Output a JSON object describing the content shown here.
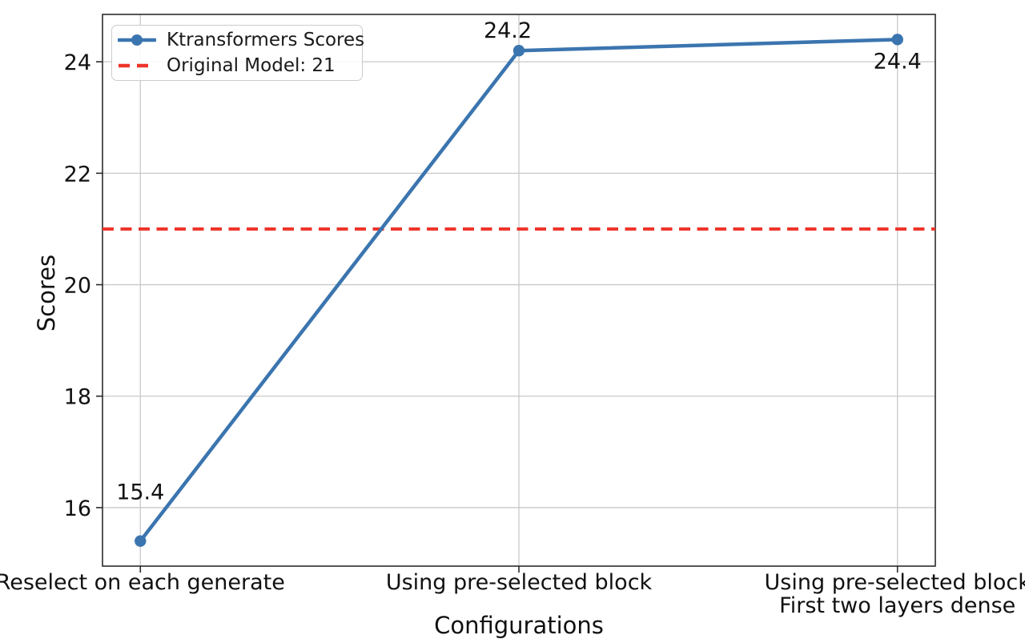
{
  "chart_data": {
    "type": "line",
    "categories": [
      "Reselect on each generate",
      "Using pre-selected block",
      "Using pre-selected block\nFirst two layers dense"
    ],
    "series": [
      {
        "name": "Ktransformers Scores",
        "values": [
          15.4,
          24.2,
          24.4
        ],
        "color": "#3b75af"
      }
    ],
    "reference_line": {
      "label": "Original Model: 21",
      "value": 21,
      "color": "#ee352b",
      "style": "dashed"
    },
    "point_labels": [
      "15.4",
      "24.2",
      "24.4"
    ],
    "title": "",
    "xlabel": "Configurations",
    "ylabel": "Scores",
    "yticks": [
      16,
      18,
      20,
      22,
      24
    ],
    "ylim": [
      14.95,
      24.85
    ],
    "xlim": [
      -0.1,
      2.1
    ],
    "grid": true,
    "legend_position": "upper left",
    "colors": {
      "line": "#3b75af",
      "reference": "#ee352b",
      "grid": "#c9c9c9",
      "spine": "#2b2b2b",
      "text": "#111111"
    }
  }
}
